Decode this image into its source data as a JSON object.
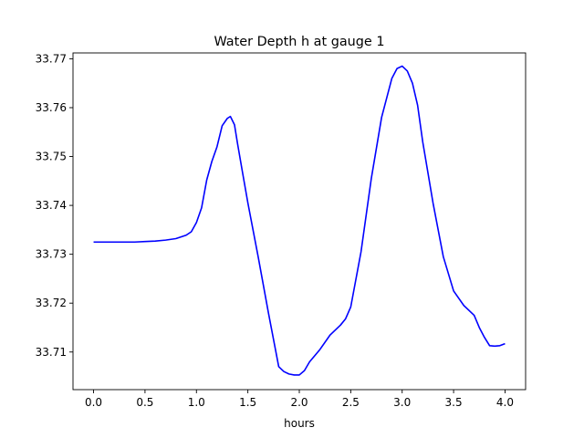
{
  "chart_data": {
    "type": "line",
    "title": "Water Depth h at gauge 1",
    "xlabel": "hours",
    "ylabel": "",
    "xlim": [
      -0.2,
      4.2
    ],
    "ylim": [
      33.7023,
      33.7712
    ],
    "x_ticks": [
      0.0,
      0.5,
      1.0,
      1.5,
      2.0,
      2.5,
      3.0,
      3.5,
      4.0
    ],
    "x_tick_labels": [
      "0.0",
      "0.5",
      "1.0",
      "1.5",
      "2.0",
      "2.5",
      "3.0",
      "3.5",
      "4.0"
    ],
    "y_ticks": [
      33.71,
      33.72,
      33.73,
      33.74,
      33.75,
      33.76,
      33.77
    ],
    "y_tick_labels": [
      "33.71",
      "33.72",
      "33.73",
      "33.74",
      "33.75",
      "33.76",
      "33.77"
    ],
    "grid": false,
    "series": [
      {
        "color": "#0000ff",
        "x": [
          0.0,
          0.2,
          0.4,
          0.5,
          0.6,
          0.7,
          0.8,
          0.9,
          0.95,
          1.0,
          1.05,
          1.1,
          1.15,
          1.2,
          1.25,
          1.3,
          1.33,
          1.37,
          1.4,
          1.45,
          1.5,
          1.6,
          1.7,
          1.8,
          1.85,
          1.9,
          1.95,
          2.0,
          2.05,
          2.1,
          2.2,
          2.3,
          2.4,
          2.45,
          2.5,
          2.6,
          2.7,
          2.8,
          2.9,
          2.95,
          3.0,
          3.05,
          3.1,
          3.15,
          3.2,
          3.3,
          3.4,
          3.5,
          3.6,
          3.7,
          3.75,
          3.8,
          3.85,
          3.9,
          3.95,
          4.0
        ],
        "y": [
          33.7325,
          33.7325,
          33.7325,
          33.7326,
          33.7327,
          33.7329,
          33.7332,
          33.7339,
          33.7346,
          33.7365,
          33.7395,
          33.7452,
          33.749,
          33.752,
          33.7563,
          33.7578,
          33.7582,
          33.7565,
          33.7526,
          33.7465,
          33.7405,
          33.7295,
          33.718,
          33.707,
          33.706,
          33.7055,
          33.7053,
          33.7053,
          33.7062,
          33.708,
          33.7105,
          33.7135,
          33.7155,
          33.7168,
          33.7192,
          33.7305,
          33.7455,
          33.758,
          33.766,
          33.768,
          33.7685,
          33.7675,
          33.765,
          33.7605,
          33.753,
          33.7405,
          33.7295,
          33.7225,
          33.7195,
          33.7175,
          33.715,
          33.713,
          33.7113,
          33.7112,
          33.7113,
          33.7117
        ]
      }
    ]
  }
}
